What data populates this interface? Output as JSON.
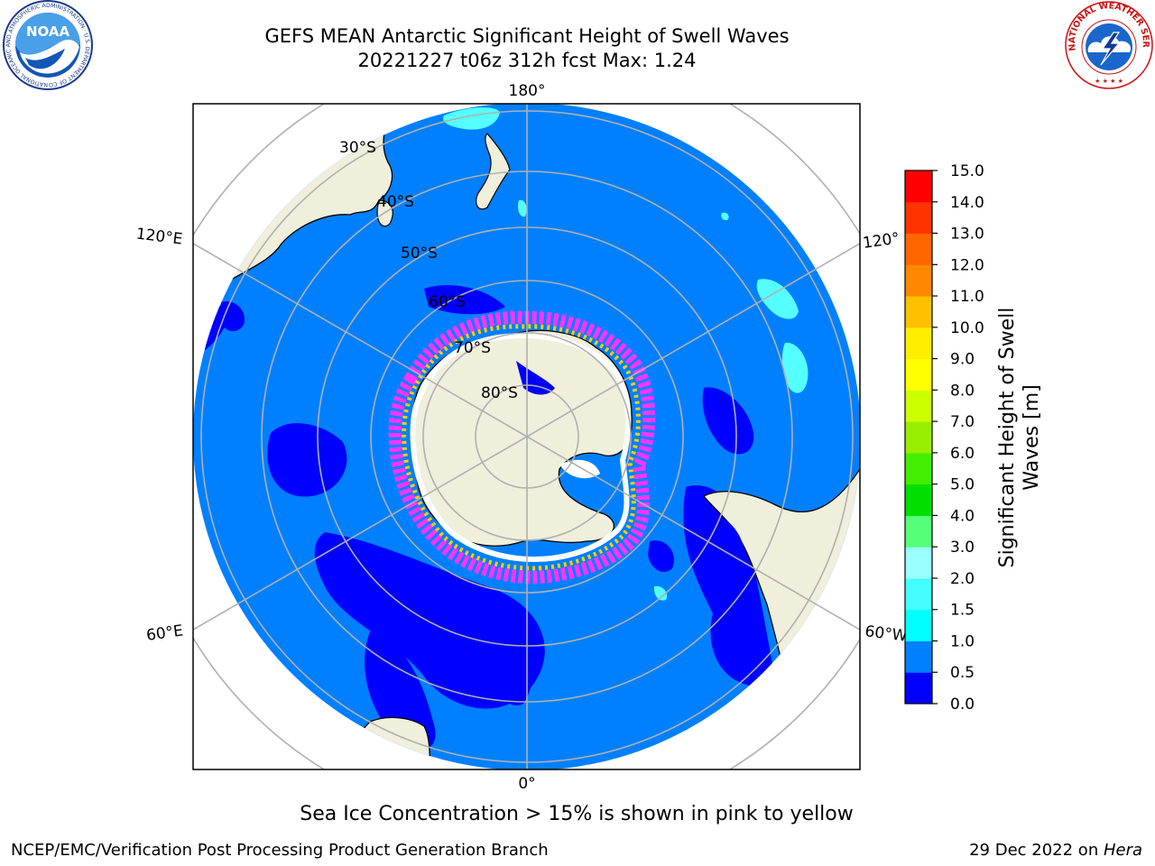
{
  "title": {
    "line1": "GEFS MEAN Antarctic Significant Height of Swell Waves",
    "line2": "20221227 t06z 312h fcst   Max: 1.24"
  },
  "map": {
    "projection": "south-polar-stereographic",
    "lon_labels": [
      "180°",
      "120°E",
      "120°",
      "60°E",
      "60°W",
      "0°"
    ],
    "lat_labels": [
      "30°S",
      "40°S",
      "50°S",
      "60°S",
      "70°S",
      "80°S"
    ],
    "colors": {
      "ocean_main": "#0080ff",
      "ocean_low": "#0000ff",
      "swell_cyan": "#55ffff",
      "land": "#efefdc",
      "grid": "#b0b0b0",
      "sea_ice_pink": "#ff33ff",
      "sea_ice_yellow": "#ffcc00"
    }
  },
  "colorbar": {
    "label_line1": "Significant Height of Swell",
    "label_line2": "Waves [m]",
    "ticks": [
      "0.0",
      "0.5",
      "1.0",
      "1.5",
      "2.0",
      "3.0",
      "4.0",
      "5.0",
      "6.0",
      "7.0",
      "8.0",
      "9.0",
      "10.0",
      "11.0",
      "12.0",
      "13.0",
      "14.0",
      "15.0"
    ],
    "colors": [
      "#0000ff",
      "#0080ff",
      "#00ffff",
      "#44ffff",
      "#99ffff",
      "#55ff77",
      "#00e000",
      "#44ee00",
      "#99ee00",
      "#ccff00",
      "#ffff00",
      "#ffee00",
      "#ffc000",
      "#ff8800",
      "#ff6600",
      "#ff3300",
      "#ff0000"
    ]
  },
  "logos": {
    "noaa_text": "NOAA",
    "noaa_ring_text": "NATIONAL OCEANIC AND ATMOSPHERIC ADMINISTRATION · U.S. DEPARTMENT OF COMMERCE",
    "nws_ring_text": "NATIONAL WEATHER SERVICE"
  },
  "caption": "Sea Ice Concentration > 15% is shown in pink to yellow",
  "footer": {
    "left": "NCEP/EMC/Verification Post Processing Product Generation Branch",
    "right_prefix": "29 Dec 2022 on ",
    "right_host": "Hera"
  }
}
